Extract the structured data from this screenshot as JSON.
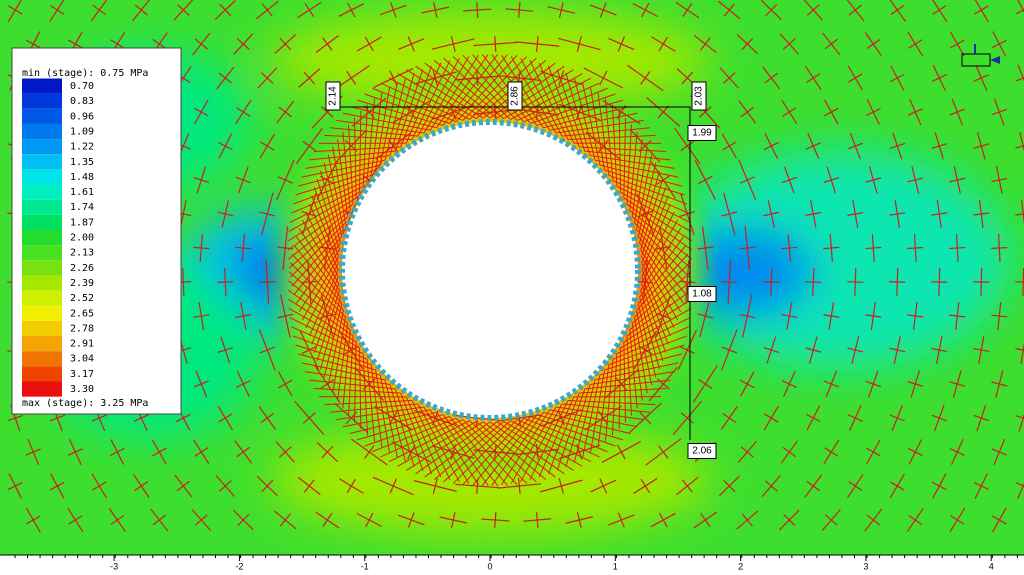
{
  "legend": {
    "min_label": "min (stage): 0.75 MPa",
    "max_label": "max (stage): 3.25 MPa",
    "levels": [
      {
        "label": "0.70",
        "color": "#0018c8"
      },
      {
        "label": "0.83",
        "color": "#0038dc"
      },
      {
        "label": "0.96",
        "color": "#0058e8"
      },
      {
        "label": "1.09",
        "color": "#0078ee"
      },
      {
        "label": "1.22",
        "color": "#0098f0"
      },
      {
        "label": "1.35",
        "color": "#00bff2"
      },
      {
        "label": "1.48",
        "color": "#00e4e8"
      },
      {
        "label": "1.61",
        "color": "#00efc0"
      },
      {
        "label": "1.74",
        "color": "#00e890"
      },
      {
        "label": "1.87",
        "color": "#00e060"
      },
      {
        "label": "2.00",
        "color": "#22dd30"
      },
      {
        "label": "2.13",
        "color": "#48e020"
      },
      {
        "label": "2.26",
        "color": "#78e210"
      },
      {
        "label": "2.39",
        "color": "#a4e800"
      },
      {
        "label": "2.52",
        "color": "#ccf000"
      },
      {
        "label": "2.65",
        "color": "#f2f000"
      },
      {
        "label": "2.78",
        "color": "#f2cc00"
      },
      {
        "label": "2.91",
        "color": "#f2a400"
      },
      {
        "label": "3.04",
        "color": "#f07400"
      },
      {
        "label": "3.17",
        "color": "#ee4400"
      },
      {
        "label": "3.30",
        "color": "#ea1010"
      }
    ]
  },
  "query_labels": [
    "2.14",
    "2.86",
    "2.03",
    "1.99",
    "1.08",
    "2.06"
  ],
  "x_axis": {
    "ticks": [
      -3,
      -2,
      -1,
      0,
      1,
      2,
      3,
      4
    ]
  }
}
